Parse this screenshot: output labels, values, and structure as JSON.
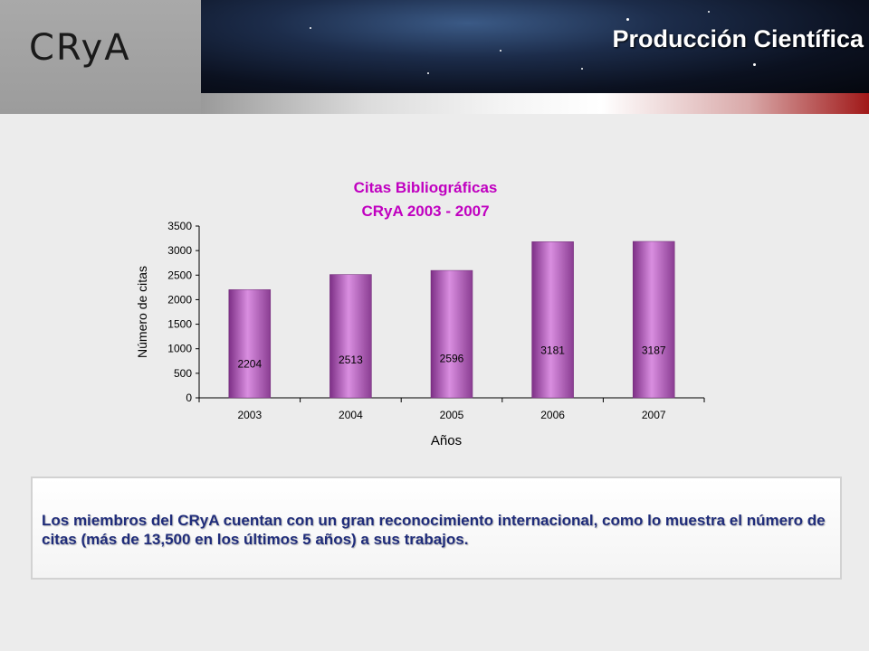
{
  "logo": {
    "text": "CRyA"
  },
  "header": {
    "title": "Producción Científica"
  },
  "chart_data": {
    "type": "bar",
    "title": [
      "Citas Bibliográficas",
      "CRyA 2003 - 2007"
    ],
    "xlabel": "Años",
    "ylabel": "Número de citas",
    "categories": [
      "2003",
      "2004",
      "2005",
      "2006",
      "2007"
    ],
    "values": [
      2204,
      2513,
      2596,
      3181,
      3187
    ],
    "data_labels": [
      "2204",
      "2513",
      "2596",
      "3181",
      "3187"
    ],
    "yticks": [
      0,
      500,
      1000,
      1500,
      2000,
      2500,
      3000,
      3500
    ],
    "ylim": [
      0,
      3500
    ],
    "grid": false,
    "bar_color": "#a14fa8"
  },
  "info": {
    "text": "Los miembros del CRyA cuentan con un gran reconocimiento internacional, como lo muestra el número de citas (más de 13,500 en los últimos 5 años) a sus trabajos."
  }
}
